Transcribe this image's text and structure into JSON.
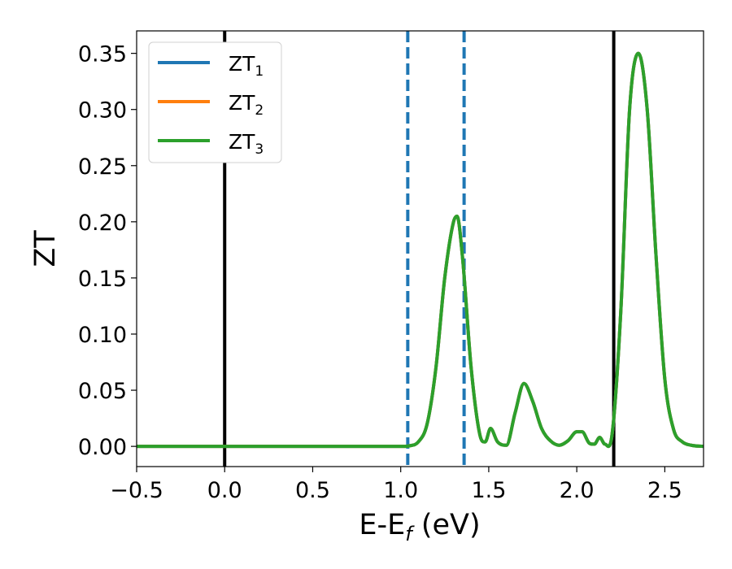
{
  "chart_data": {
    "type": "line",
    "xlabel": "E-E",
    "xlabel_sub": "f",
    "xlabel_unit": " (eV)",
    "ylabel": "ZT",
    "xlim": [
      -0.5,
      2.72
    ],
    "ylim": [
      -0.018,
      0.37
    ],
    "xticks": [
      -0.5,
      0.0,
      0.5,
      1.0,
      1.5,
      2.0,
      2.5
    ],
    "xtick_labels": [
      "−0.5",
      "0.0",
      "0.5",
      "1.0",
      "1.5",
      "2.0",
      "2.5"
    ],
    "yticks": [
      0.0,
      0.05,
      0.1,
      0.15,
      0.2,
      0.25,
      0.3,
      0.35
    ],
    "ytick_labels": [
      "0.00",
      "0.05",
      "0.10",
      "0.15",
      "0.20",
      "0.25",
      "0.30",
      "0.35"
    ],
    "grid": false,
    "legend_position": "top-left",
    "series": [
      {
        "name": "ZT",
        "name_sub": "1",
        "color": "#1f77b4",
        "x": [
          -0.5,
          0.0,
          0.5,
          1.0,
          1.05,
          1.1,
          1.15,
          1.2,
          1.25,
          1.3,
          1.32,
          1.35,
          1.4,
          1.45,
          1.48,
          1.51,
          1.55,
          1.6,
          1.65,
          1.7,
          1.75,
          1.8,
          1.85,
          1.9,
          1.95,
          2.0,
          2.03,
          2.07,
          2.1,
          2.13,
          2.16,
          2.2,
          2.25,
          2.3,
          2.35,
          2.4,
          2.45,
          2.5,
          2.55,
          2.6,
          2.65,
          2.72
        ],
        "y": [
          0,
          0,
          0,
          0,
          0.0005,
          0.004,
          0.02,
          0.07,
          0.15,
          0.2,
          0.205,
          0.17,
          0.07,
          0.01,
          0.004,
          0.016,
          0.004,
          0.001,
          0.03,
          0.056,
          0.04,
          0.016,
          0.005,
          0.001,
          0.005,
          0.013,
          0.013,
          0.003,
          0.002,
          0.008,
          0.002,
          0.01,
          0.12,
          0.3,
          0.35,
          0.3,
          0.17,
          0.06,
          0.015,
          0.004,
          0.001,
          0
        ]
      },
      {
        "name": "ZT",
        "name_sub": "2",
        "color": "#ff7f0e",
        "x": [
          -0.5,
          0.0,
          0.5,
          1.0,
          1.05,
          1.1,
          1.15,
          1.2,
          1.25,
          1.3,
          1.32,
          1.35,
          1.4,
          1.45,
          1.48,
          1.51,
          1.55,
          1.6,
          1.65,
          1.7,
          1.75,
          1.8,
          1.85,
          1.9,
          1.95,
          2.0,
          2.03,
          2.07,
          2.1,
          2.13,
          2.16,
          2.2,
          2.25,
          2.3,
          2.35,
          2.4,
          2.45,
          2.5,
          2.55,
          2.6,
          2.65,
          2.72
        ],
        "y": [
          0,
          0,
          0,
          0,
          0.0005,
          0.004,
          0.02,
          0.07,
          0.15,
          0.2,
          0.205,
          0.17,
          0.07,
          0.01,
          0.004,
          0.016,
          0.004,
          0.001,
          0.03,
          0.056,
          0.04,
          0.016,
          0.005,
          0.001,
          0.005,
          0.013,
          0.013,
          0.003,
          0.002,
          0.008,
          0.002,
          0.01,
          0.12,
          0.3,
          0.35,
          0.3,
          0.17,
          0.06,
          0.015,
          0.004,
          0.001,
          0
        ]
      },
      {
        "name": "ZT",
        "name_sub": "3",
        "color": "#2ca02c",
        "x": [
          -0.5,
          0.0,
          0.5,
          1.0,
          1.05,
          1.1,
          1.15,
          1.2,
          1.25,
          1.3,
          1.32,
          1.35,
          1.4,
          1.45,
          1.48,
          1.51,
          1.55,
          1.6,
          1.65,
          1.7,
          1.75,
          1.8,
          1.85,
          1.9,
          1.95,
          2.0,
          2.03,
          2.07,
          2.1,
          2.13,
          2.16,
          2.2,
          2.25,
          2.3,
          2.35,
          2.4,
          2.45,
          2.5,
          2.55,
          2.6,
          2.65,
          2.72
        ],
        "y": [
          0,
          0,
          0,
          0,
          0.0005,
          0.004,
          0.02,
          0.07,
          0.15,
          0.2,
          0.205,
          0.17,
          0.07,
          0.01,
          0.004,
          0.016,
          0.004,
          0.001,
          0.03,
          0.056,
          0.04,
          0.016,
          0.005,
          0.001,
          0.005,
          0.013,
          0.013,
          0.003,
          0.002,
          0.008,
          0.002,
          0.01,
          0.12,
          0.3,
          0.35,
          0.3,
          0.17,
          0.06,
          0.015,
          0.004,
          0.001,
          0
        ]
      }
    ],
    "vlines": [
      {
        "x": 0.0,
        "style": "solid",
        "color": "#000000"
      },
      {
        "x": 2.21,
        "style": "solid",
        "color": "#000000"
      },
      {
        "x": 1.04,
        "style": "dashed",
        "color": "#1f77b4"
      },
      {
        "x": 1.36,
        "style": "dashed",
        "color": "#1f77b4"
      }
    ]
  }
}
